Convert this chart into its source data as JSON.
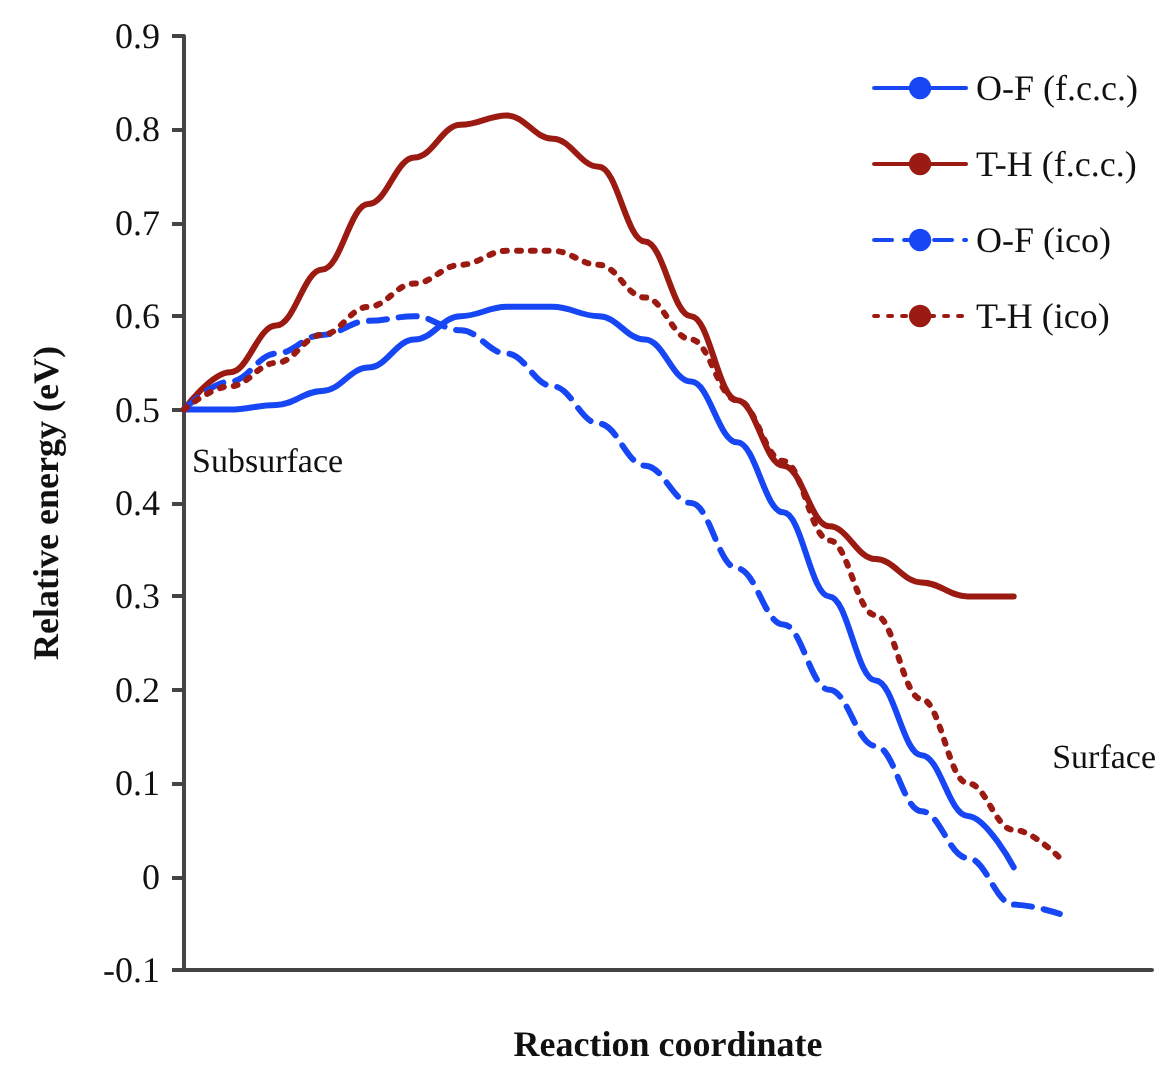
{
  "chart_data": {
    "type": "line",
    "xlabel": "Reaction coordinate",
    "ylabel": "Relative energy (eV)",
    "categories": [
      null,
      null,
      null,
      null,
      null,
      null,
      null,
      null,
      null,
      null,
      null,
      null,
      null,
      null,
      null,
      null,
      null,
      null,
      null,
      null,
      null,
      null
    ],
    "ylim": [
      -0.1,
      0.9
    ],
    "yticks": [
      -0.1,
      0,
      0.1,
      0.2,
      0.3,
      0.4,
      0.5,
      0.6,
      0.7,
      0.8,
      0.9
    ],
    "grid": false,
    "legend": "top right",
    "marker": "none",
    "annotations": [
      "Subsurface",
      "Surface"
    ],
    "series": [
      {
        "name": "O-F (f.c.c.)",
        "color": "#1747f5",
        "line_style": "solid",
        "values": [
          0.5,
          0.5,
          0.505,
          0.52,
          0.545,
          0.575,
          0.6,
          0.61,
          0.61,
          0.6,
          0.575,
          0.53,
          0.465,
          0.39,
          0.3,
          0.21,
          0.13,
          0.065,
          0.01,
          null,
          null,
          null
        ]
      },
      {
        "name": "T-H (f.c.c.)",
        "color": "#9b1a12",
        "line_style": "solid",
        "values": [
          0.5,
          0.54,
          0.59,
          0.65,
          0.72,
          0.77,
          0.805,
          0.815,
          0.79,
          0.76,
          0.68,
          0.6,
          0.51,
          0.44,
          0.375,
          0.34,
          0.315,
          0.3,
          0.3,
          null,
          null,
          null
        ]
      },
      {
        "name": "O-F (ico)",
        "color": "#1747f5",
        "line_style": "dashed",
        "values": [
          0.5,
          0.53,
          0.56,
          0.58,
          0.595,
          0.6,
          0.585,
          0.56,
          0.525,
          0.485,
          0.44,
          0.4,
          0.33,
          0.27,
          0.2,
          0.14,
          0.07,
          0.02,
          -0.03,
          -0.04,
          null,
          null
        ]
      },
      {
        "name": "T-H (ico)",
        "color": "#9b1a12",
        "line_style": "dotted",
        "values": [
          0.5,
          0.525,
          0.55,
          0.58,
          0.61,
          0.635,
          0.655,
          0.67,
          0.67,
          0.655,
          0.62,
          0.575,
          0.51,
          0.445,
          0.36,
          0.28,
          0.19,
          0.1,
          0.05,
          0.02,
          null,
          null
        ]
      }
    ]
  }
}
